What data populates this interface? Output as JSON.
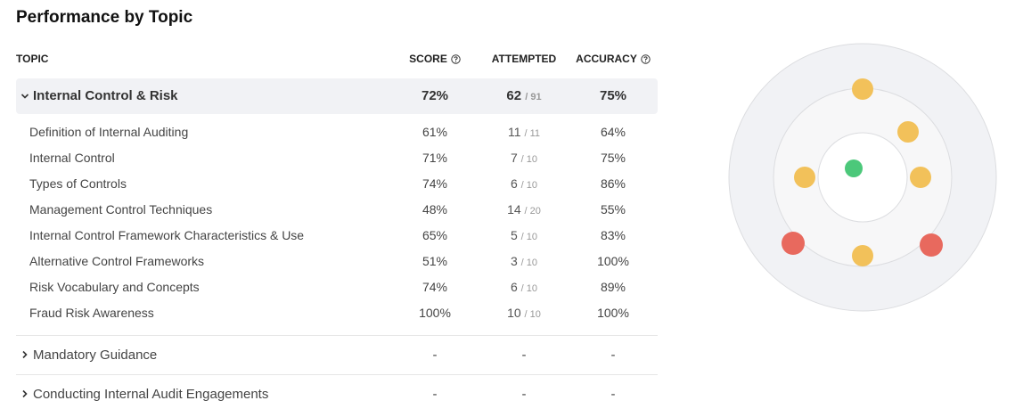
{
  "title": "Performance by Topic",
  "columns": [
    "TOPIC",
    "SCORE",
    "ATTEMPTED",
    "ACCURACY"
  ],
  "groups": [
    {
      "name": "Internal Control & Risk",
      "score": "72%",
      "attempted": "62",
      "total": "/ 91",
      "accuracy": "75%",
      "topics": [
        {
          "name": "Definition of Internal Auditing",
          "score": "61%",
          "attempted": "11",
          "total": "/ 11",
          "accuracy": "64%"
        },
        {
          "name": "Internal Control",
          "score": "71%",
          "attempted": "7",
          "total": "/ 10",
          "accuracy": "75%"
        },
        {
          "name": "Types of Controls",
          "score": "74%",
          "attempted": "6",
          "total": "/ 10",
          "accuracy": "86%"
        },
        {
          "name": "Management Control Techniques",
          "score": "48%",
          "attempted": "14",
          "total": "/ 20",
          "accuracy": "55%"
        },
        {
          "name": "Internal Control Framework Characteristics & Use",
          "score": "65%",
          "attempted": "5",
          "total": "/ 10",
          "accuracy": "83%"
        },
        {
          "name": "Alternative Control Frameworks",
          "score": "51%",
          "attempted": "3",
          "total": "/ 10",
          "accuracy": "100%"
        },
        {
          "name": "Risk Vocabulary and Concepts",
          "score": "74%",
          "attempted": "6",
          "total": "/ 10",
          "accuracy": "89%"
        },
        {
          "name": "Fraud Risk Awareness",
          "score": "100%",
          "attempted": "10",
          "total": "/ 10",
          "accuracy": "100%"
        }
      ]
    },
    {
      "name": "Mandatory Guidance",
      "score": "-",
      "attempted": "-",
      "accuracy": "-"
    },
    {
      "name": "Conducting Internal Audit Engagements",
      "score": "-",
      "attempted": "-",
      "accuracy": "-"
    }
  ]
}
